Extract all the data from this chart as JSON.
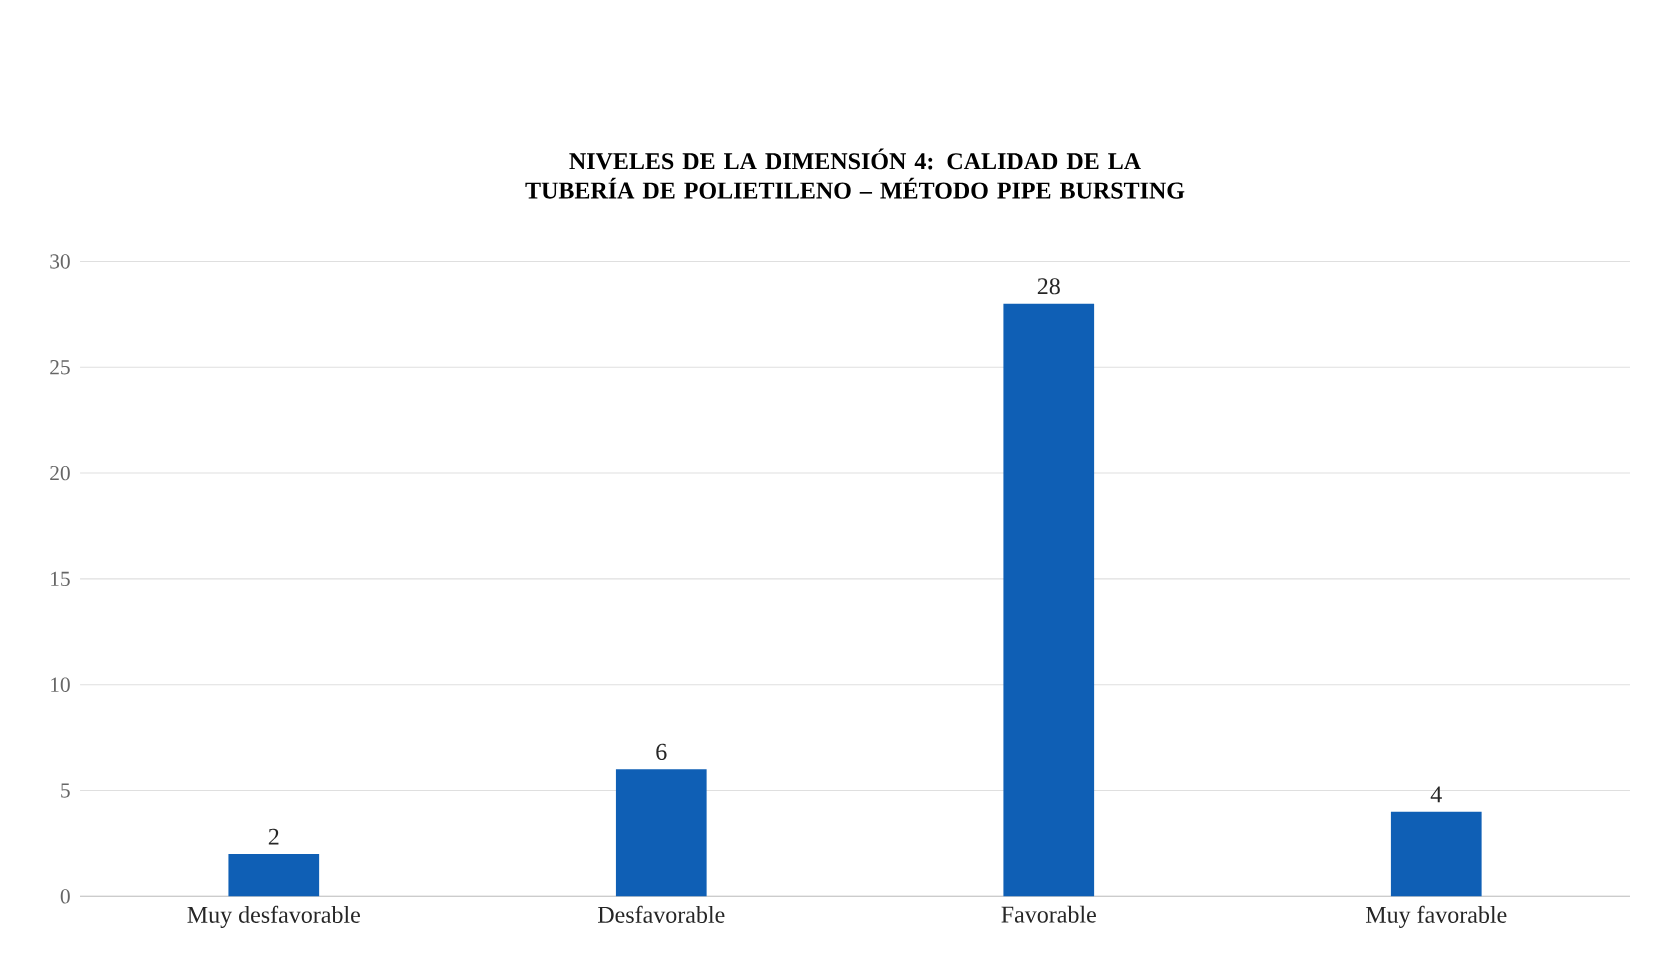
{
  "chart_data": {
    "type": "bar",
    "title": "NIVELES DE LA DIMENSIÓN 4: CALIDAD DE LA TUBERÍA DE POLIETILENO – MÉTODO PIPE BURSTING",
    "categories": [
      "Muy desfavorable",
      "Desfavorable",
      "Favorable",
      "Muy favorable"
    ],
    "values": [
      2,
      6,
      28,
      4
    ],
    "color": "#0f5fb5",
    "ylim": [
      0,
      30
    ],
    "yticks": [
      0,
      5,
      10,
      15,
      20,
      25,
      30
    ],
    "grid": "y",
    "data_labels": true
  }
}
